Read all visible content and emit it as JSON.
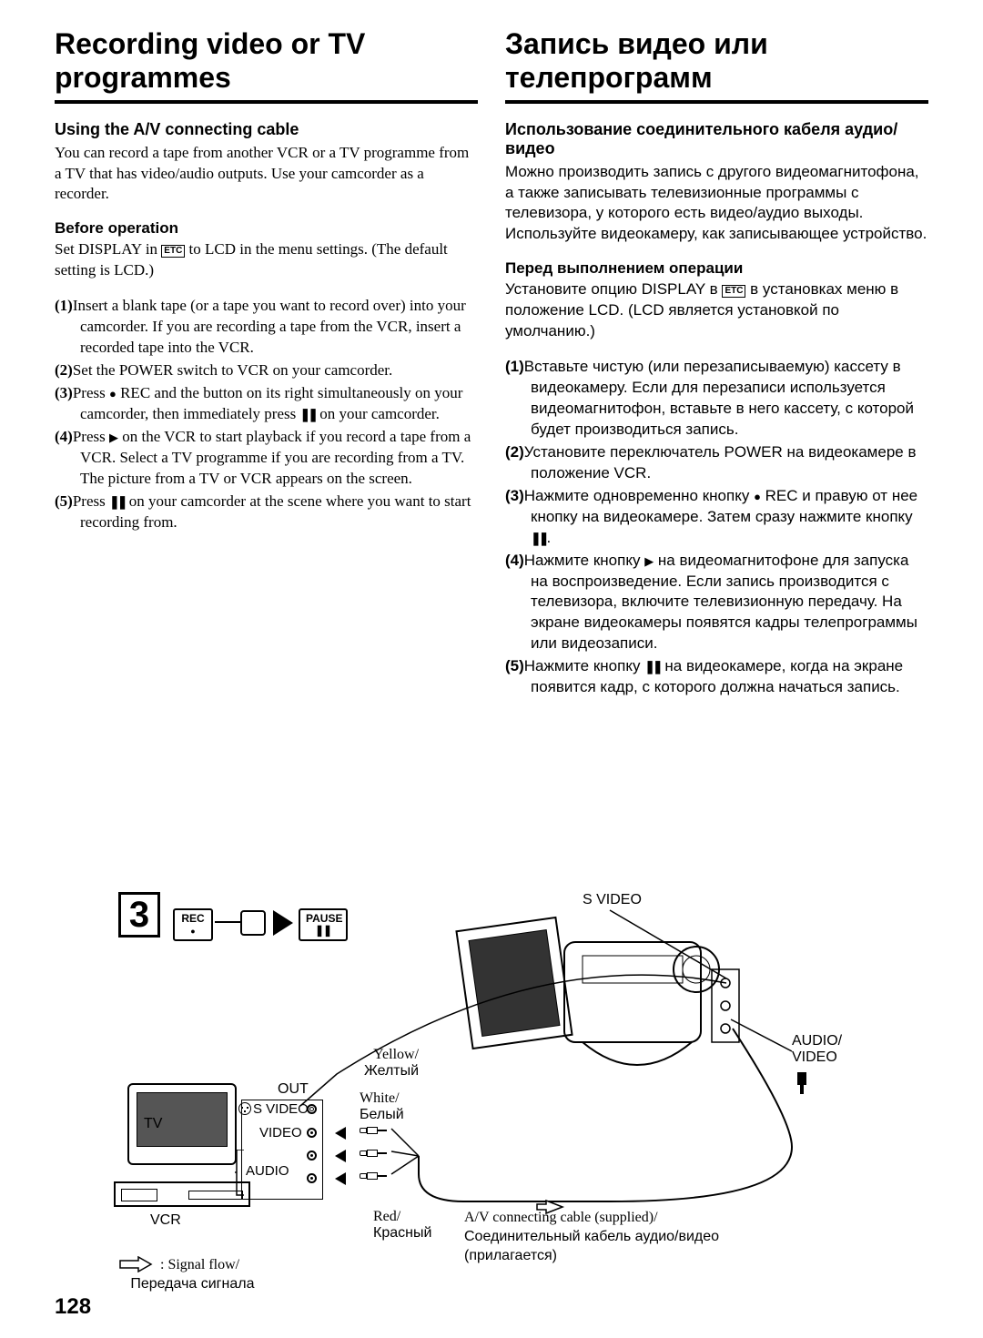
{
  "page_number": "128",
  "left": {
    "title": "Recording video or TV programmes",
    "h2": "Using the A/V connecting cable",
    "intro": "You can record a tape from another VCR or a TV programme from a TV that has video/audio outputs. Use your camcorder as a recorder.",
    "before_heading": "Before operation",
    "before_text_pre": "Set DISPLAY in ",
    "before_text_post": " to LCD in the menu settings. (The default setting is LCD.)",
    "steps": [
      {
        "n": "(1)",
        "t": "Insert a blank tape (or a tape you want to record over) into your camcorder. If you are recording a tape from the VCR, insert a recorded tape into the VCR."
      },
      {
        "n": "(2)",
        "t": "Set the POWER switch to VCR on your camcorder."
      },
      {
        "n": "(3)",
        "pre": "Press ",
        "sym1": "●",
        "mid1": " REC and the button on its right simultaneously on your camcorder, then immediately press ",
        "sym2": "❚❚",
        "post": " on your camcorder."
      },
      {
        "n": "(4)",
        "pre": "Press ",
        "sym1": "▶",
        "mid1": " on the VCR to start playback if you record a tape from a VCR. Select a TV programme if you are recording from a TV. The picture from a TV or VCR appears on the screen."
      },
      {
        "n": "(5)",
        "pre": "Press ",
        "sym1": "❚❚",
        "mid1": " on your camcorder at the scene where you want to start recording from."
      }
    ]
  },
  "right": {
    "title": "Запись видео или телепрограмм",
    "h2": "Использование соединительного кабеля аудио/видео",
    "intro": "Можно производить запись с другого видеомагнитофона, а также записывать телевизионные программы с телевизора, у которого есть видео/аудио выходы. Используйте видеокамеру, как записывающее устройство.",
    "before_heading": "Перед выполнением операции",
    "before_text_pre": "Установите опцию DISPLAY в ",
    "before_text_post": " в установках меню в положение LCD. (LCD является установкой по умолчанию.)",
    "steps": [
      {
        "n": "(1)",
        "t": "Вставьте чистую (или перезаписываемую) кассету в видеокамеру. Если для перезаписи используется видеомагнитофон, вставьте в него кассету, с которой будет производиться запись."
      },
      {
        "n": "(2)",
        "t": "Установите переключатель POWER на видеокамере в положение VCR."
      },
      {
        "n": "(3)",
        "pre": "Нажмите одновременно кнопку ",
        "sym1": "●",
        "mid1": " REC и правую от нее кнопку на видеокамере. Затем сразу нажмите кнопку ",
        "sym2": "❚❚",
        "post": "."
      },
      {
        "n": "(4)",
        "pre": "Нажмите кнопку ",
        "sym1": "▶",
        "mid1": " на видеомагнитофоне для запуска на воспроизведение. Если запись производится с телевизора, включите телевизионную передачу. На экране видеокамеры появятся кадры телепрограммы или видеозаписи."
      },
      {
        "n": "(5)",
        "pre": "Нажмите кнопку ",
        "sym1": "❚❚",
        "mid1": " на видеокамере, когда на экране появится кадр, с которого должна начаться запись."
      }
    ]
  },
  "diagram": {
    "step_num": "3",
    "rec_label": "REC",
    "pause_label": "PAUSE",
    "svideo_top": "S VIDEO",
    "audio_video": "AUDIO/\nVIDEO",
    "out": "OUT",
    "svideo": "S VIDEO",
    "video": "VIDEO",
    "audio": "AUDIO",
    "tv": "TV",
    "vcr": "VCR",
    "yellow": "Yellow/\nЖелтый",
    "white": "White/\nБелый",
    "red": "Red/\nКрасный",
    "av_cable": "A/V connecting cable (supplied)/\nСоединительный кабель аудио/видео\n(прилагается)",
    "signal": ": Signal flow/\n  Передача сигнала",
    "etc": "ETC"
  }
}
